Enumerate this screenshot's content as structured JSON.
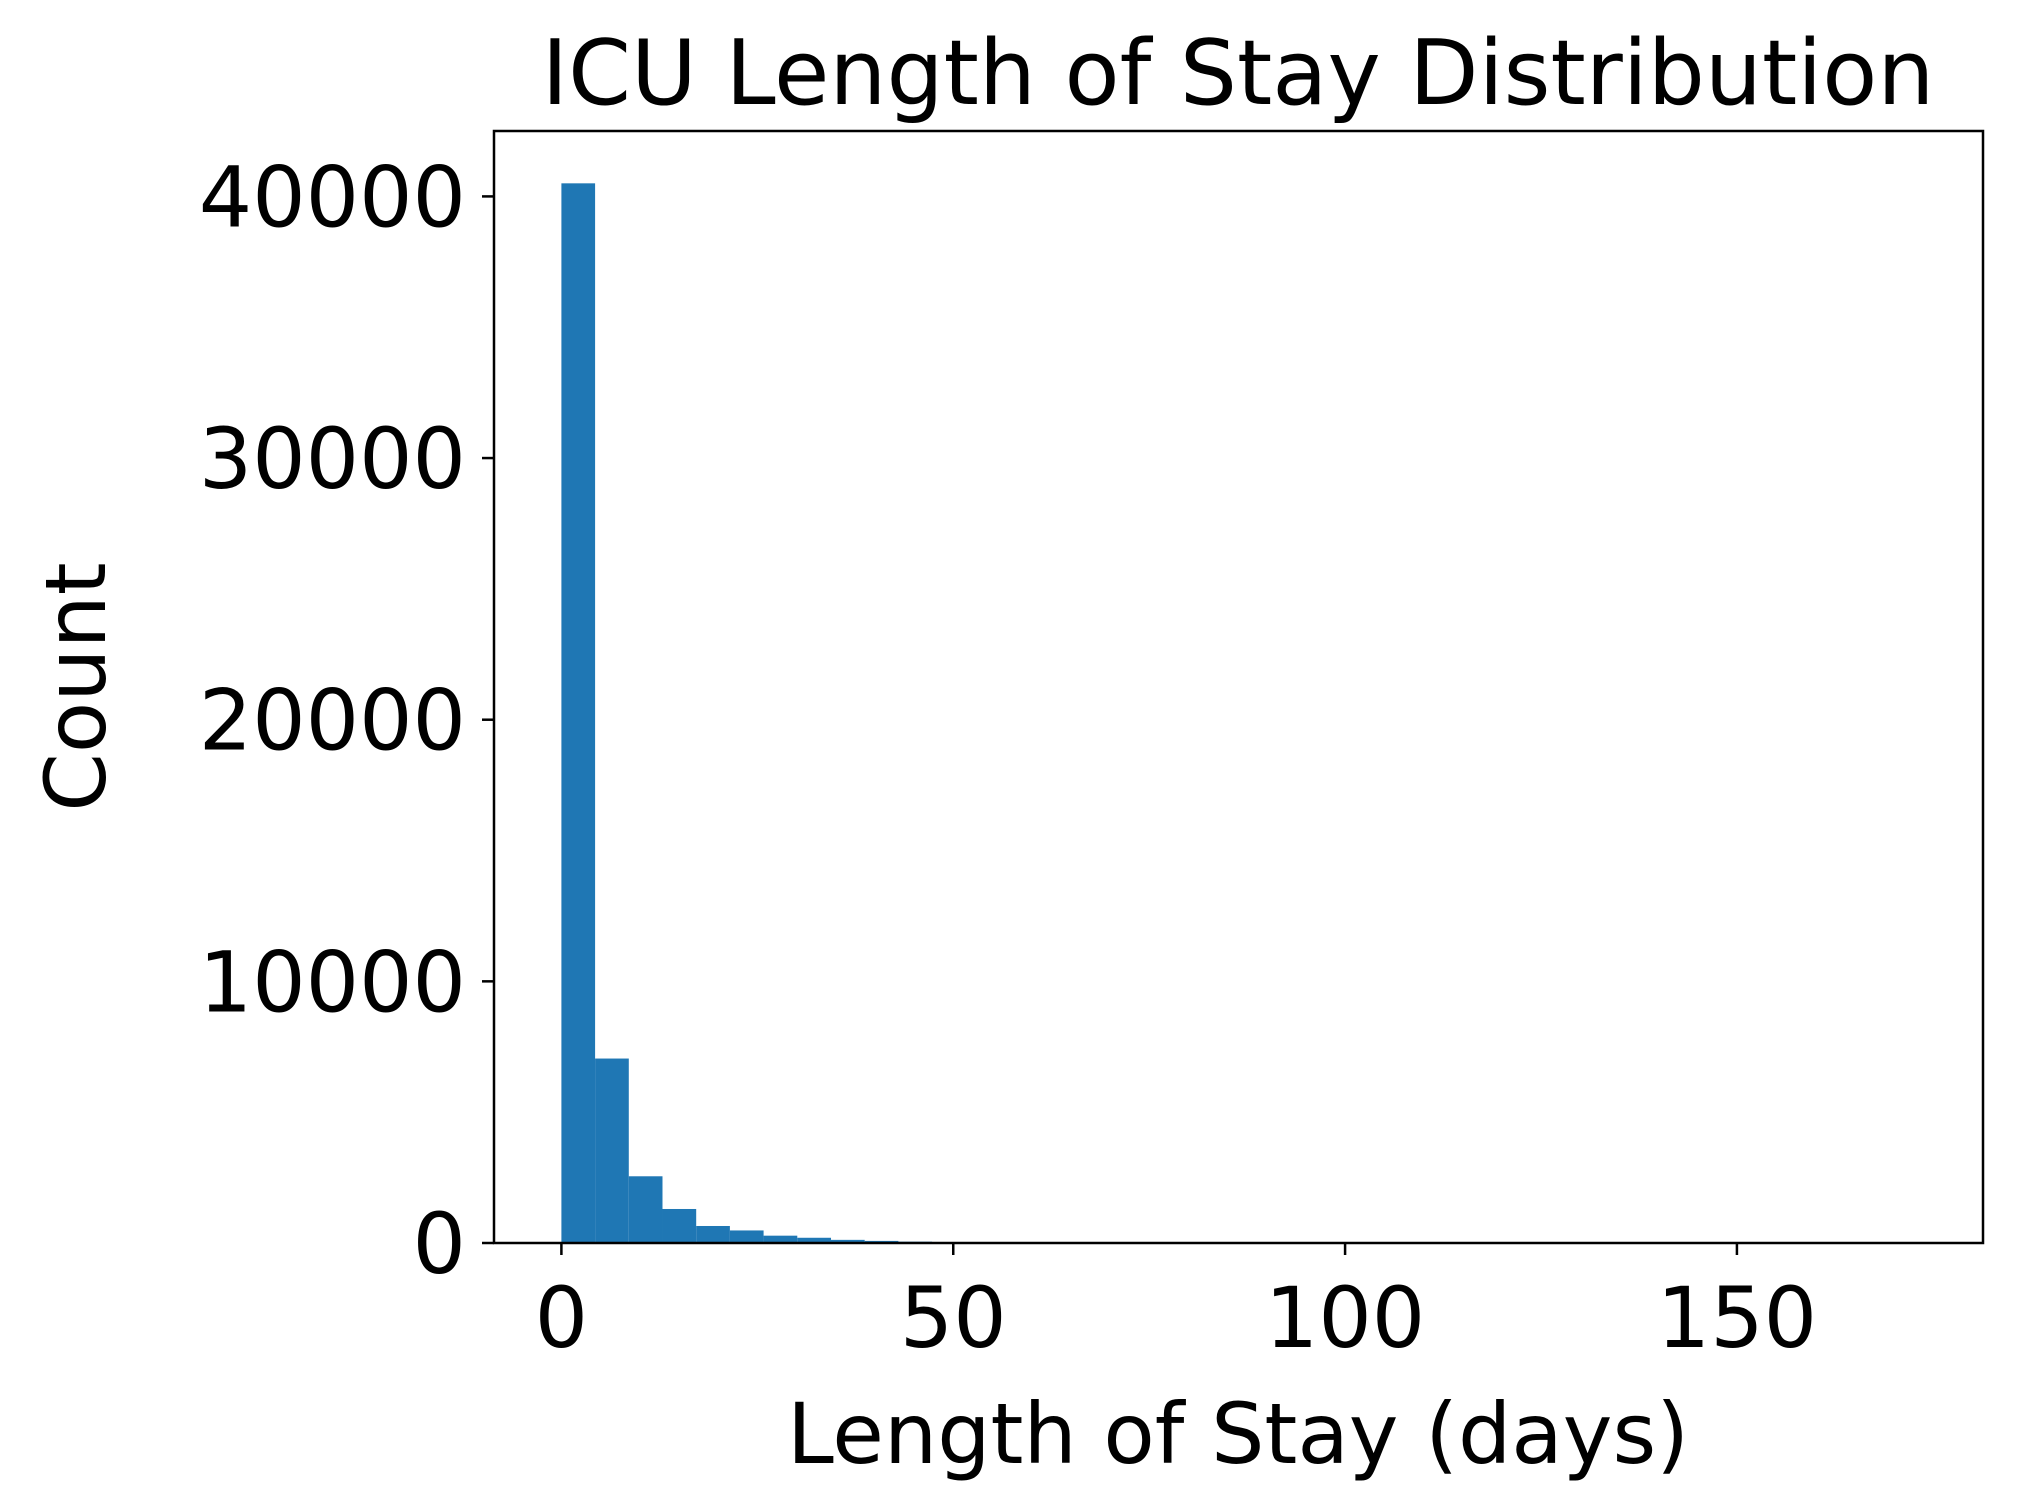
{
  "chart_data": {
    "type": "bar",
    "title": "ICU Length of Stay Distribution",
    "xlabel": "Length of Stay (days)",
    "ylabel": "Count",
    "xlim": [
      -8.6,
      181.4
    ],
    "ylim": [
      0,
      42500
    ],
    "x_ticks": [
      0,
      50,
      100,
      150
    ],
    "y_ticks": [
      0,
      10000,
      20000,
      30000,
      40000
    ],
    "grid": false,
    "bar_color": "#1f77b4",
    "bins": [
      {
        "start": 0.0,
        "end": 4.3,
        "count": 40500
      },
      {
        "start": 4.3,
        "end": 8.6,
        "count": 7050
      },
      {
        "start": 8.6,
        "end": 12.9,
        "count": 2550
      },
      {
        "start": 12.9,
        "end": 17.2,
        "count": 1300
      },
      {
        "start": 17.2,
        "end": 21.5,
        "count": 650
      },
      {
        "start": 21.5,
        "end": 25.8,
        "count": 480
      },
      {
        "start": 25.8,
        "end": 30.1,
        "count": 280
      },
      {
        "start": 30.1,
        "end": 34.4,
        "count": 200
      },
      {
        "start": 34.4,
        "end": 38.7,
        "count": 120
      },
      {
        "start": 38.7,
        "end": 43.0,
        "count": 80
      },
      {
        "start": 43.0,
        "end": 47.3,
        "count": 50
      },
      {
        "start": 47.3,
        "end": 51.6,
        "count": 35
      },
      {
        "start": 51.6,
        "end": 55.9,
        "count": 25
      },
      {
        "start": 55.9,
        "end": 60.2,
        "count": 20
      },
      {
        "start": 60.2,
        "end": 64.5,
        "count": 15
      },
      {
        "start": 64.5,
        "end": 68.8,
        "count": 10
      },
      {
        "start": 68.8,
        "end": 73.1,
        "count": 8
      },
      {
        "start": 73.1,
        "end": 77.4,
        "count": 6
      },
      {
        "start": 77.4,
        "end": 81.7,
        "count": 5
      },
      {
        "start": 81.7,
        "end": 86.0,
        "count": 4
      },
      {
        "start": 86.0,
        "end": 90.3,
        "count": 3
      },
      {
        "start": 90.3,
        "end": 94.6,
        "count": 3
      },
      {
        "start": 94.6,
        "end": 98.9,
        "count": 2
      },
      {
        "start": 98.9,
        "end": 103.2,
        "count": 2
      },
      {
        "start": 103.2,
        "end": 107.5,
        "count": 2
      },
      {
        "start": 107.5,
        "end": 111.8,
        "count": 1
      },
      {
        "start": 111.8,
        "end": 116.1,
        "count": 1
      },
      {
        "start": 116.1,
        "end": 120.4,
        "count": 1
      },
      {
        "start": 120.4,
        "end": 124.7,
        "count": 1
      },
      {
        "start": 124.7,
        "end": 129.0,
        "count": 1
      },
      {
        "start": 129.0,
        "end": 133.3,
        "count": 1
      },
      {
        "start": 133.3,
        "end": 137.6,
        "count": 0
      },
      {
        "start": 137.6,
        "end": 141.9,
        "count": 1
      },
      {
        "start": 141.9,
        "end": 146.2,
        "count": 0
      },
      {
        "start": 146.2,
        "end": 150.5,
        "count": 0
      },
      {
        "start": 150.5,
        "end": 154.8,
        "count": 0
      },
      {
        "start": 154.8,
        "end": 159.1,
        "count": 0
      },
      {
        "start": 159.1,
        "end": 163.4,
        "count": 0
      },
      {
        "start": 163.4,
        "end": 167.7,
        "count": 0
      },
      {
        "start": 167.7,
        "end": 172.0,
        "count": 1
      }
    ]
  }
}
